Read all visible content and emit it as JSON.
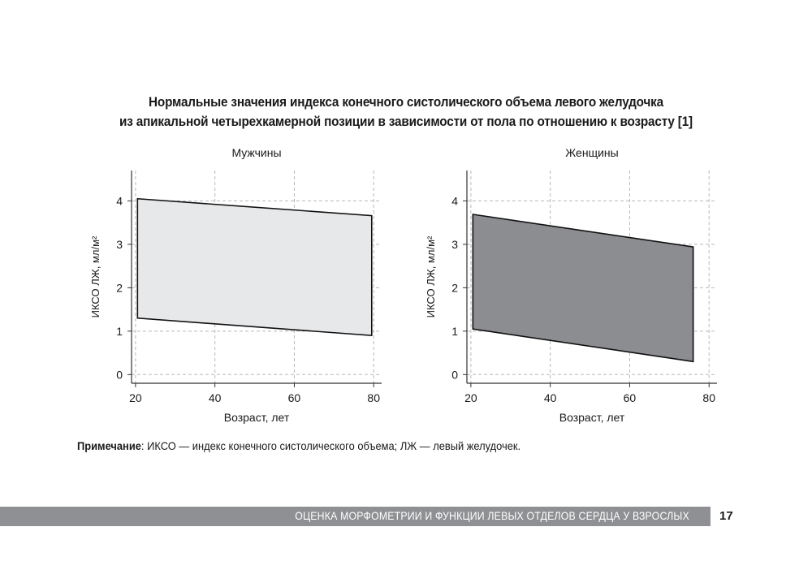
{
  "title": {
    "line1": "Нормальные значения индекса конечного систолического объема левого желудочка",
    "line2": "из апикальной четырехкамерной позиции в зависимости от пола по отношению к возрасту [1]"
  },
  "chart_data": [
    {
      "type": "area",
      "title": "Мужчины",
      "xlabel": "Возраст, лет",
      "ylabel": "ИКСО ЛЖ, мл/м²",
      "xlim": [
        19,
        82
      ],
      "ylim": [
        -0.2,
        4.7
      ],
      "xticks": [
        20,
        40,
        60,
        80
      ],
      "yticks": [
        0,
        1,
        2,
        3,
        4
      ],
      "grid": true,
      "fill_color": "#e7e8e9",
      "series": [
        {
          "x": [
            20.5,
            79.5
          ],
          "y_upper": [
            4.05,
            3.66
          ],
          "y_lower": [
            1.3,
            0.9
          ]
        }
      ]
    },
    {
      "type": "area",
      "title": "Женщины",
      "xlabel": "Возраст, лет",
      "ylabel": "ИКСО ЛЖ, мл/м²",
      "xlim": [
        19,
        82
      ],
      "ylim": [
        -0.2,
        4.7
      ],
      "xticks": [
        20,
        40,
        60,
        80
      ],
      "yticks": [
        0,
        1,
        2,
        3,
        4
      ],
      "grid": true,
      "fill_color": "#8c8d90",
      "series": [
        {
          "x": [
            20.5,
            76
          ],
          "y_upper": [
            3.69,
            2.94
          ],
          "y_lower": [
            1.05,
            0.3
          ]
        }
      ]
    }
  ],
  "note": {
    "label": "Примечание",
    "text": ": ИКСО — индекс конечного систолического объема; ЛЖ — левый желудочек."
  },
  "footer": {
    "text": "ОЦЕНКА МОРФОМЕТРИИ И ФУНКЦИИ ЛЕВЫХ ОТДЕЛОВ СЕРДЦА У ВЗРОСЛЫХ",
    "page": "17"
  }
}
